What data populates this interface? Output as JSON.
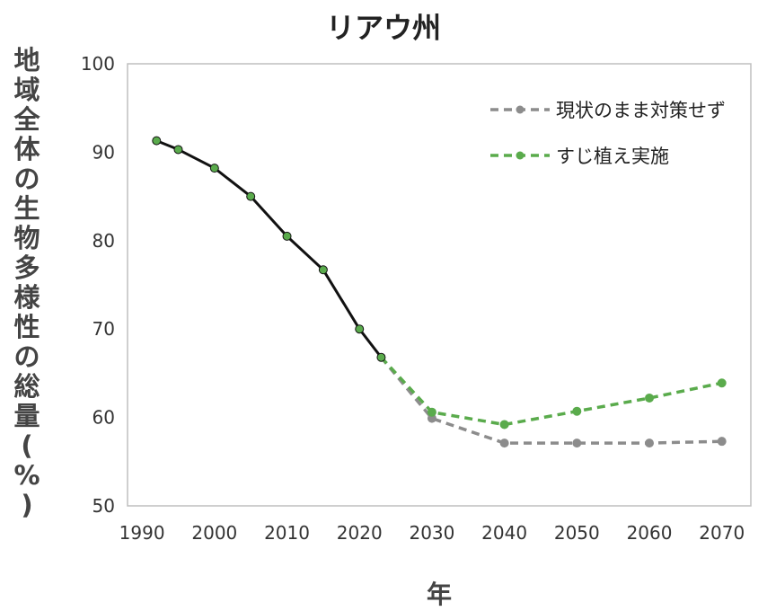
{
  "chart_data": {
    "type": "line",
    "title": "リアウ州",
    "xlabel": "年",
    "ylabel": "地域全体の生物多様性の総量(%)",
    "xlim": [
      1988,
      2074
    ],
    "ylim": [
      50,
      100
    ],
    "x_ticks": [
      1990,
      2000,
      2010,
      2020,
      2030,
      2040,
      2050,
      2060,
      2070
    ],
    "y_ticks": [
      50,
      60,
      70,
      80,
      90,
      100
    ],
    "grid": false,
    "legend": "top-right",
    "series": [
      {
        "color": "#111111",
        "line_style": "solid",
        "marker_color": "#5aab4c",
        "points": [
          {
            "x": 1992,
            "y": 91.3
          },
          {
            "x": 1995,
            "y": 90.3
          },
          {
            "x": 2000,
            "y": 88.2
          },
          {
            "x": 2005,
            "y": 85.0
          },
          {
            "x": 2010,
            "y": 80.5
          },
          {
            "x": 2015,
            "y": 76.7
          },
          {
            "x": 2020,
            "y": 70.0
          },
          {
            "x": 2023,
            "y": 66.8
          }
        ]
      },
      {
        "name": "現状のまま対策せず",
        "color": "#8c8c8c",
        "line_style": "dashed",
        "points": [
          {
            "x": 2023,
            "y": 66.8
          },
          {
            "x": 2030,
            "y": 59.9
          },
          {
            "x": 2040,
            "y": 57.1
          },
          {
            "x": 2050,
            "y": 57.1
          },
          {
            "x": 2060,
            "y": 57.1
          },
          {
            "x": 2070,
            "y": 57.3
          }
        ]
      },
      {
        "name": "すじ植え実施",
        "color": "#5aab4c",
        "line_style": "dashed",
        "points": [
          {
            "x": 2023,
            "y": 66.8
          },
          {
            "x": 2030,
            "y": 60.6
          },
          {
            "x": 2040,
            "y": 59.2
          },
          {
            "x": 2050,
            "y": 60.7
          },
          {
            "x": 2060,
            "y": 62.2
          },
          {
            "x": 2070,
            "y": 63.9
          }
        ]
      }
    ]
  }
}
